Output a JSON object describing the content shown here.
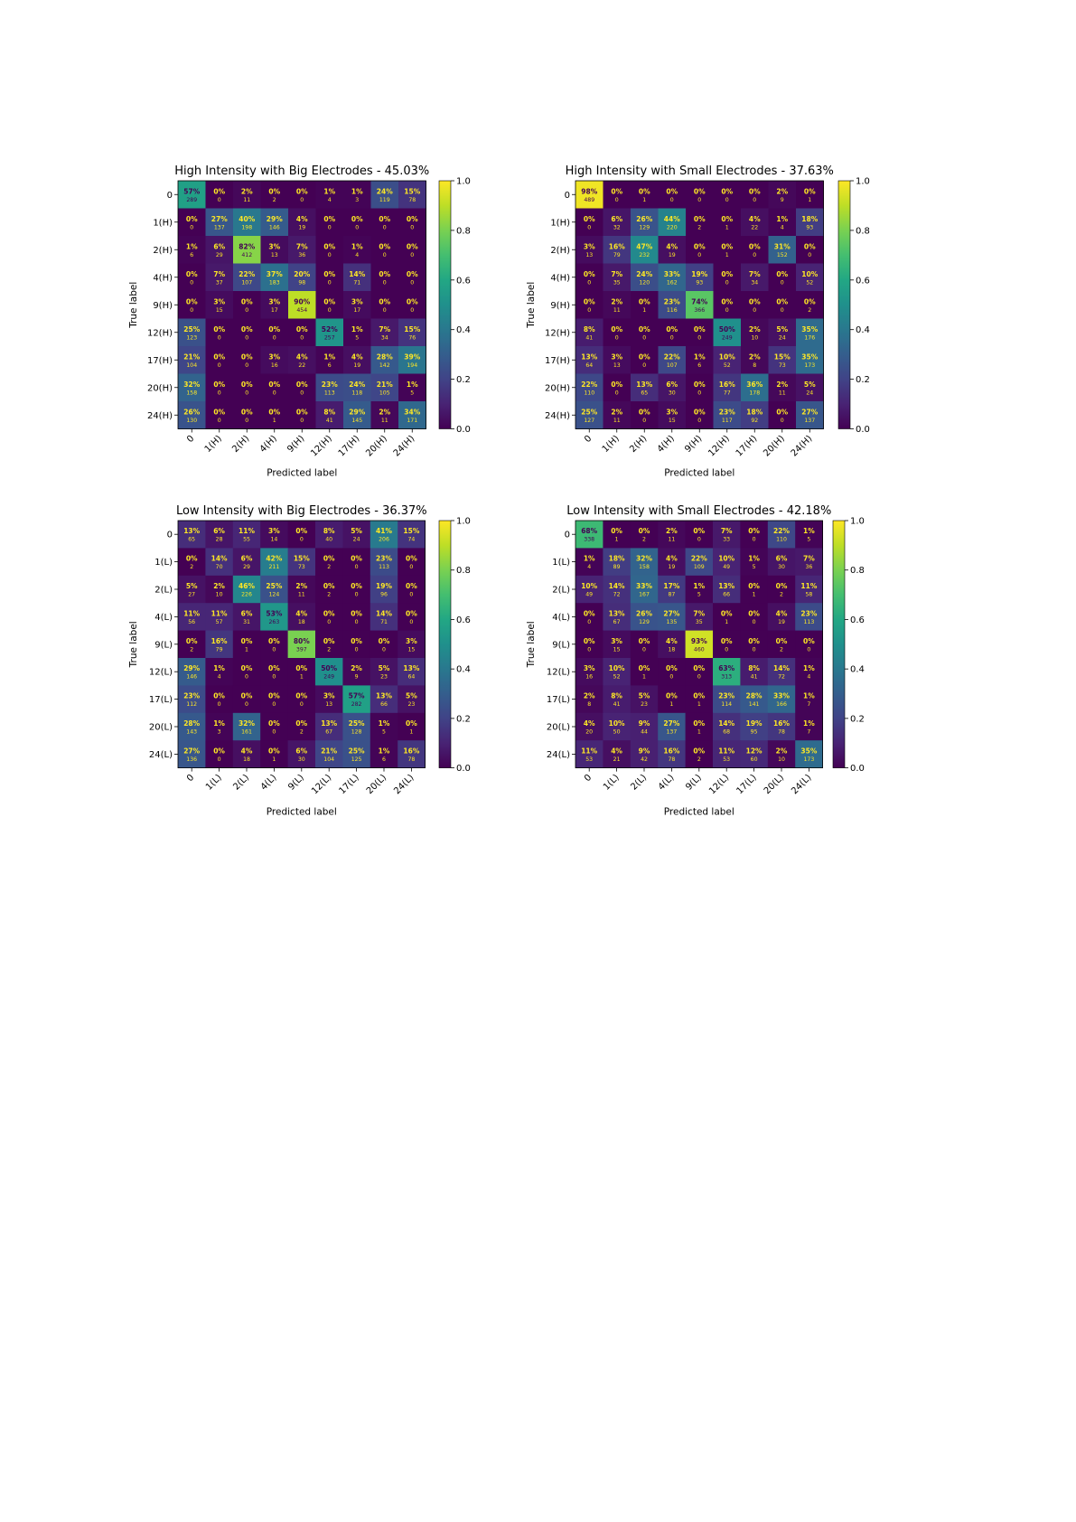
{
  "chart_data": [
    {
      "type": "heatmap",
      "title": "High Intensity with Big Electrodes -  45.03%",
      "xlabel": "Predicted label",
      "ylabel": "True label",
      "categories": [
        "0",
        "1(H)",
        "2(H)",
        "4(H)",
        "9(H)",
        "12(H)",
        "17(H)",
        "20(H)",
        "24(H)"
      ],
      "colorbar": {
        "min": 0.0,
        "max": 1.0,
        "ticks": [
          "0.0",
          "0.2",
          "0.4",
          "0.6",
          "0.8",
          "1.0"
        ]
      },
      "percent": [
        [
          "57%",
          "0%",
          "2%",
          "0%",
          "0%",
          "1%",
          "1%",
          "24%",
          "15%"
        ],
        [
          "0%",
          "27%",
          "40%",
          "29%",
          "4%",
          "0%",
          "0%",
          "0%",
          "0%"
        ],
        [
          "1%",
          "6%",
          "82%",
          "3%",
          "7%",
          "0%",
          "1%",
          "0%",
          "0%"
        ],
        [
          "0%",
          "7%",
          "22%",
          "37%",
          "20%",
          "0%",
          "14%",
          "0%",
          "0%"
        ],
        [
          "0%",
          "3%",
          "0%",
          "3%",
          "90%",
          "0%",
          "3%",
          "0%",
          "0%"
        ],
        [
          "25%",
          "0%",
          "0%",
          "0%",
          "0%",
          "52%",
          "1%",
          "7%",
          "15%"
        ],
        [
          "21%",
          "0%",
          "0%",
          "3%",
          "4%",
          "1%",
          "4%",
          "28%",
          "39%"
        ],
        [
          "32%",
          "0%",
          "0%",
          "0%",
          "0%",
          "23%",
          "24%",
          "21%",
          "1%"
        ],
        [
          "26%",
          "0%",
          "0%",
          "0%",
          "0%",
          "8%",
          "29%",
          "2%",
          "34%"
        ]
      ],
      "counts": [
        [
          "289",
          "0",
          "11",
          "2",
          "0",
          "4",
          "3",
          "119",
          "78"
        ],
        [
          "0",
          "137",
          "198",
          "146",
          "19",
          "0",
          "0",
          "0",
          "0"
        ],
        [
          "6",
          "29",
          "412",
          "13",
          "36",
          "0",
          "4",
          "0",
          "0"
        ],
        [
          "0",
          "37",
          "107",
          "183",
          "98",
          "0",
          "71",
          "0",
          "0"
        ],
        [
          "0",
          "15",
          "0",
          "17",
          "454",
          "0",
          "17",
          "0",
          "0"
        ],
        [
          "123",
          "0",
          "0",
          "0",
          "0",
          "257",
          "5",
          "34",
          "76"
        ],
        [
          "104",
          "0",
          "0",
          "16",
          "22",
          "6",
          "19",
          "142",
          "194"
        ],
        [
          "158",
          "0",
          "0",
          "0",
          "0",
          "113",
          "118",
          "105",
          "5"
        ],
        [
          "130",
          "0",
          "0",
          "1",
          "0",
          "41",
          "145",
          "11",
          "171"
        ]
      ]
    },
    {
      "type": "heatmap",
      "title": "High Intensity with Small Electrodes -  37.63%",
      "xlabel": "Predicted label",
      "ylabel": "True label",
      "categories": [
        "0",
        "1(H)",
        "2(H)",
        "4(H)",
        "9(H)",
        "12(H)",
        "17(H)",
        "20(H)",
        "24(H)"
      ],
      "colorbar": {
        "min": 0.0,
        "max": 1.0,
        "ticks": [
          "0.0",
          "0.2",
          "0.4",
          "0.6",
          "0.8",
          "1.0"
        ]
      },
      "percent": [
        [
          "98%",
          "0%",
          "0%",
          "0%",
          "0%",
          "0%",
          "0%",
          "2%",
          "0%"
        ],
        [
          "0%",
          "6%",
          "26%",
          "44%",
          "0%",
          "0%",
          "4%",
          "1%",
          "18%"
        ],
        [
          "3%",
          "16%",
          "47%",
          "4%",
          "0%",
          "0%",
          "0%",
          "31%",
          "0%"
        ],
        [
          "0%",
          "7%",
          "24%",
          "33%",
          "19%",
          "0%",
          "7%",
          "0%",
          "10%"
        ],
        [
          "0%",
          "2%",
          "0%",
          "23%",
          "74%",
          "0%",
          "0%",
          "0%",
          "0%"
        ],
        [
          "8%",
          "0%",
          "0%",
          "0%",
          "0%",
          "50%",
          "2%",
          "5%",
          "35%"
        ],
        [
          "13%",
          "3%",
          "0%",
          "22%",
          "1%",
          "10%",
          "2%",
          "15%",
          "35%"
        ],
        [
          "22%",
          "0%",
          "13%",
          "6%",
          "0%",
          "16%",
          "36%",
          "2%",
          "5%"
        ],
        [
          "25%",
          "2%",
          "0%",
          "3%",
          "0%",
          "23%",
          "18%",
          "0%",
          "27%"
        ]
      ],
      "counts": [
        [
          "489",
          "0",
          "1",
          "0",
          "0",
          "0",
          "0",
          "9",
          "1"
        ],
        [
          "0",
          "32",
          "129",
          "220",
          "2",
          "1",
          "22",
          "4",
          "93"
        ],
        [
          "13",
          "79",
          "232",
          "19",
          "0",
          "1",
          "0",
          "152",
          "0"
        ],
        [
          "0",
          "35",
          "120",
          "162",
          "93",
          "0",
          "34",
          "0",
          "52"
        ],
        [
          "0",
          "11",
          "1",
          "116",
          "366",
          "0",
          "0",
          "0",
          "2"
        ],
        [
          "41",
          "0",
          "0",
          "0",
          "0",
          "249",
          "10",
          "24",
          "176"
        ],
        [
          "64",
          "13",
          "0",
          "107",
          "6",
          "52",
          "8",
          "73",
          "173"
        ],
        [
          "110",
          "0",
          "65",
          "30",
          "0",
          "77",
          "178",
          "11",
          "24"
        ],
        [
          "127",
          "11",
          "0",
          "15",
          "0",
          "117",
          "92",
          "0",
          "137"
        ]
      ]
    },
    {
      "type": "heatmap",
      "title": "Low Intensity with Big Electrodes -  36.37%",
      "xlabel": "Predicted label",
      "ylabel": "True label",
      "categories": [
        "0",
        "1(L)",
        "2(L)",
        "4(L)",
        "9(L)",
        "12(L)",
        "17(L)",
        "20(L)",
        "24(L)"
      ],
      "colorbar": {
        "min": 0.0,
        "max": 1.0,
        "ticks": [
          "0.0",
          "0.2",
          "0.4",
          "0.6",
          "0.8",
          "1.0"
        ]
      },
      "percent": [
        [
          "13%",
          "6%",
          "11%",
          "3%",
          "0%",
          "8%",
          "5%",
          "41%",
          "15%"
        ],
        [
          "0%",
          "14%",
          "6%",
          "42%",
          "15%",
          "0%",
          "0%",
          "23%",
          "0%"
        ],
        [
          "5%",
          "2%",
          "46%",
          "25%",
          "2%",
          "0%",
          "0%",
          "19%",
          "0%"
        ],
        [
          "11%",
          "11%",
          "6%",
          "53%",
          "4%",
          "0%",
          "0%",
          "14%",
          "0%"
        ],
        [
          "0%",
          "16%",
          "0%",
          "0%",
          "80%",
          "0%",
          "0%",
          "0%",
          "3%"
        ],
        [
          "29%",
          "1%",
          "0%",
          "0%",
          "0%",
          "50%",
          "2%",
          "5%",
          "13%"
        ],
        [
          "23%",
          "0%",
          "0%",
          "0%",
          "0%",
          "3%",
          "57%",
          "13%",
          "5%"
        ],
        [
          "28%",
          "1%",
          "32%",
          "0%",
          "0%",
          "13%",
          "25%",
          "1%",
          "0%"
        ],
        [
          "27%",
          "0%",
          "4%",
          "0%",
          "6%",
          "21%",
          "25%",
          "1%",
          "16%"
        ]
      ],
      "counts": [
        [
          "65",
          "28",
          "55",
          "14",
          "0",
          "40",
          "24",
          "206",
          "74"
        ],
        [
          "2",
          "70",
          "29",
          "211",
          "73",
          "2",
          "0",
          "113",
          "0"
        ],
        [
          "27",
          "10",
          "226",
          "124",
          "11",
          "2",
          "0",
          "96",
          "0"
        ],
        [
          "56",
          "57",
          "31",
          "263",
          "18",
          "0",
          "0",
          "71",
          "0"
        ],
        [
          "2",
          "79",
          "1",
          "0",
          "397",
          "2",
          "0",
          "0",
          "15"
        ],
        [
          "146",
          "4",
          "0",
          "0",
          "1",
          "249",
          "9",
          "23",
          "64"
        ],
        [
          "112",
          "0",
          "0",
          "0",
          "0",
          "13",
          "282",
          "66",
          "23"
        ],
        [
          "143",
          "3",
          "161",
          "0",
          "2",
          "67",
          "128",
          "5",
          "1"
        ],
        [
          "136",
          "0",
          "18",
          "1",
          "30",
          "104",
          "125",
          "6",
          "78"
        ]
      ]
    },
    {
      "type": "heatmap",
      "title": "Low Intensity with Small Electrodes -  42.18%",
      "xlabel": "Predicted label",
      "ylabel": "True label",
      "categories": [
        "0",
        "1(L)",
        "2(L)",
        "4(L)",
        "9(L)",
        "12(L)",
        "17(L)",
        "20(L)",
        "24(L)"
      ],
      "colorbar": {
        "min": 0.0,
        "max": 1.0,
        "ticks": [
          "0.0",
          "0.2",
          "0.4",
          "0.6",
          "0.8",
          "1.0"
        ]
      },
      "percent": [
        [
          "68%",
          "0%",
          "0%",
          "2%",
          "0%",
          "7%",
          "0%",
          "22%",
          "1%"
        ],
        [
          "1%",
          "18%",
          "32%",
          "4%",
          "22%",
          "10%",
          "1%",
          "6%",
          "7%"
        ],
        [
          "10%",
          "14%",
          "33%",
          "17%",
          "1%",
          "13%",
          "0%",
          "0%",
          "11%"
        ],
        [
          "0%",
          "13%",
          "26%",
          "27%",
          "7%",
          "0%",
          "0%",
          "4%",
          "23%"
        ],
        [
          "0%",
          "3%",
          "0%",
          "4%",
          "93%",
          "0%",
          "0%",
          "0%",
          "0%"
        ],
        [
          "3%",
          "10%",
          "0%",
          "0%",
          "0%",
          "63%",
          "8%",
          "14%",
          "1%"
        ],
        [
          "2%",
          "8%",
          "5%",
          "0%",
          "0%",
          "23%",
          "28%",
          "33%",
          "1%"
        ],
        [
          "4%",
          "10%",
          "9%",
          "27%",
          "0%",
          "14%",
          "19%",
          "16%",
          "1%"
        ],
        [
          "11%",
          "4%",
          "9%",
          "16%",
          "0%",
          "11%",
          "12%",
          "2%",
          "35%"
        ]
      ],
      "counts": [
        [
          "338",
          "1",
          "2",
          "11",
          "0",
          "33",
          "0",
          "110",
          "5"
        ],
        [
          "4",
          "89",
          "158",
          "19",
          "109",
          "49",
          "5",
          "30",
          "36"
        ],
        [
          "49",
          "72",
          "167",
          "87",
          "5",
          "66",
          "1",
          "2",
          "58"
        ],
        [
          "0",
          "67",
          "129",
          "135",
          "35",
          "1",
          "0",
          "19",
          "113"
        ],
        [
          "0",
          "15",
          "0",
          "18",
          "460",
          "0",
          "0",
          "2",
          "0"
        ],
        [
          "16",
          "52",
          "1",
          "0",
          "0",
          "313",
          "41",
          "72",
          "4"
        ],
        [
          "8",
          "41",
          "23",
          "1",
          "1",
          "114",
          "141",
          "166",
          "7"
        ],
        [
          "20",
          "50",
          "44",
          "137",
          "1",
          "68",
          "95",
          "78",
          "7"
        ],
        [
          "53",
          "21",
          "42",
          "78",
          "2",
          "53",
          "60",
          "10",
          "173"
        ]
      ]
    }
  ]
}
